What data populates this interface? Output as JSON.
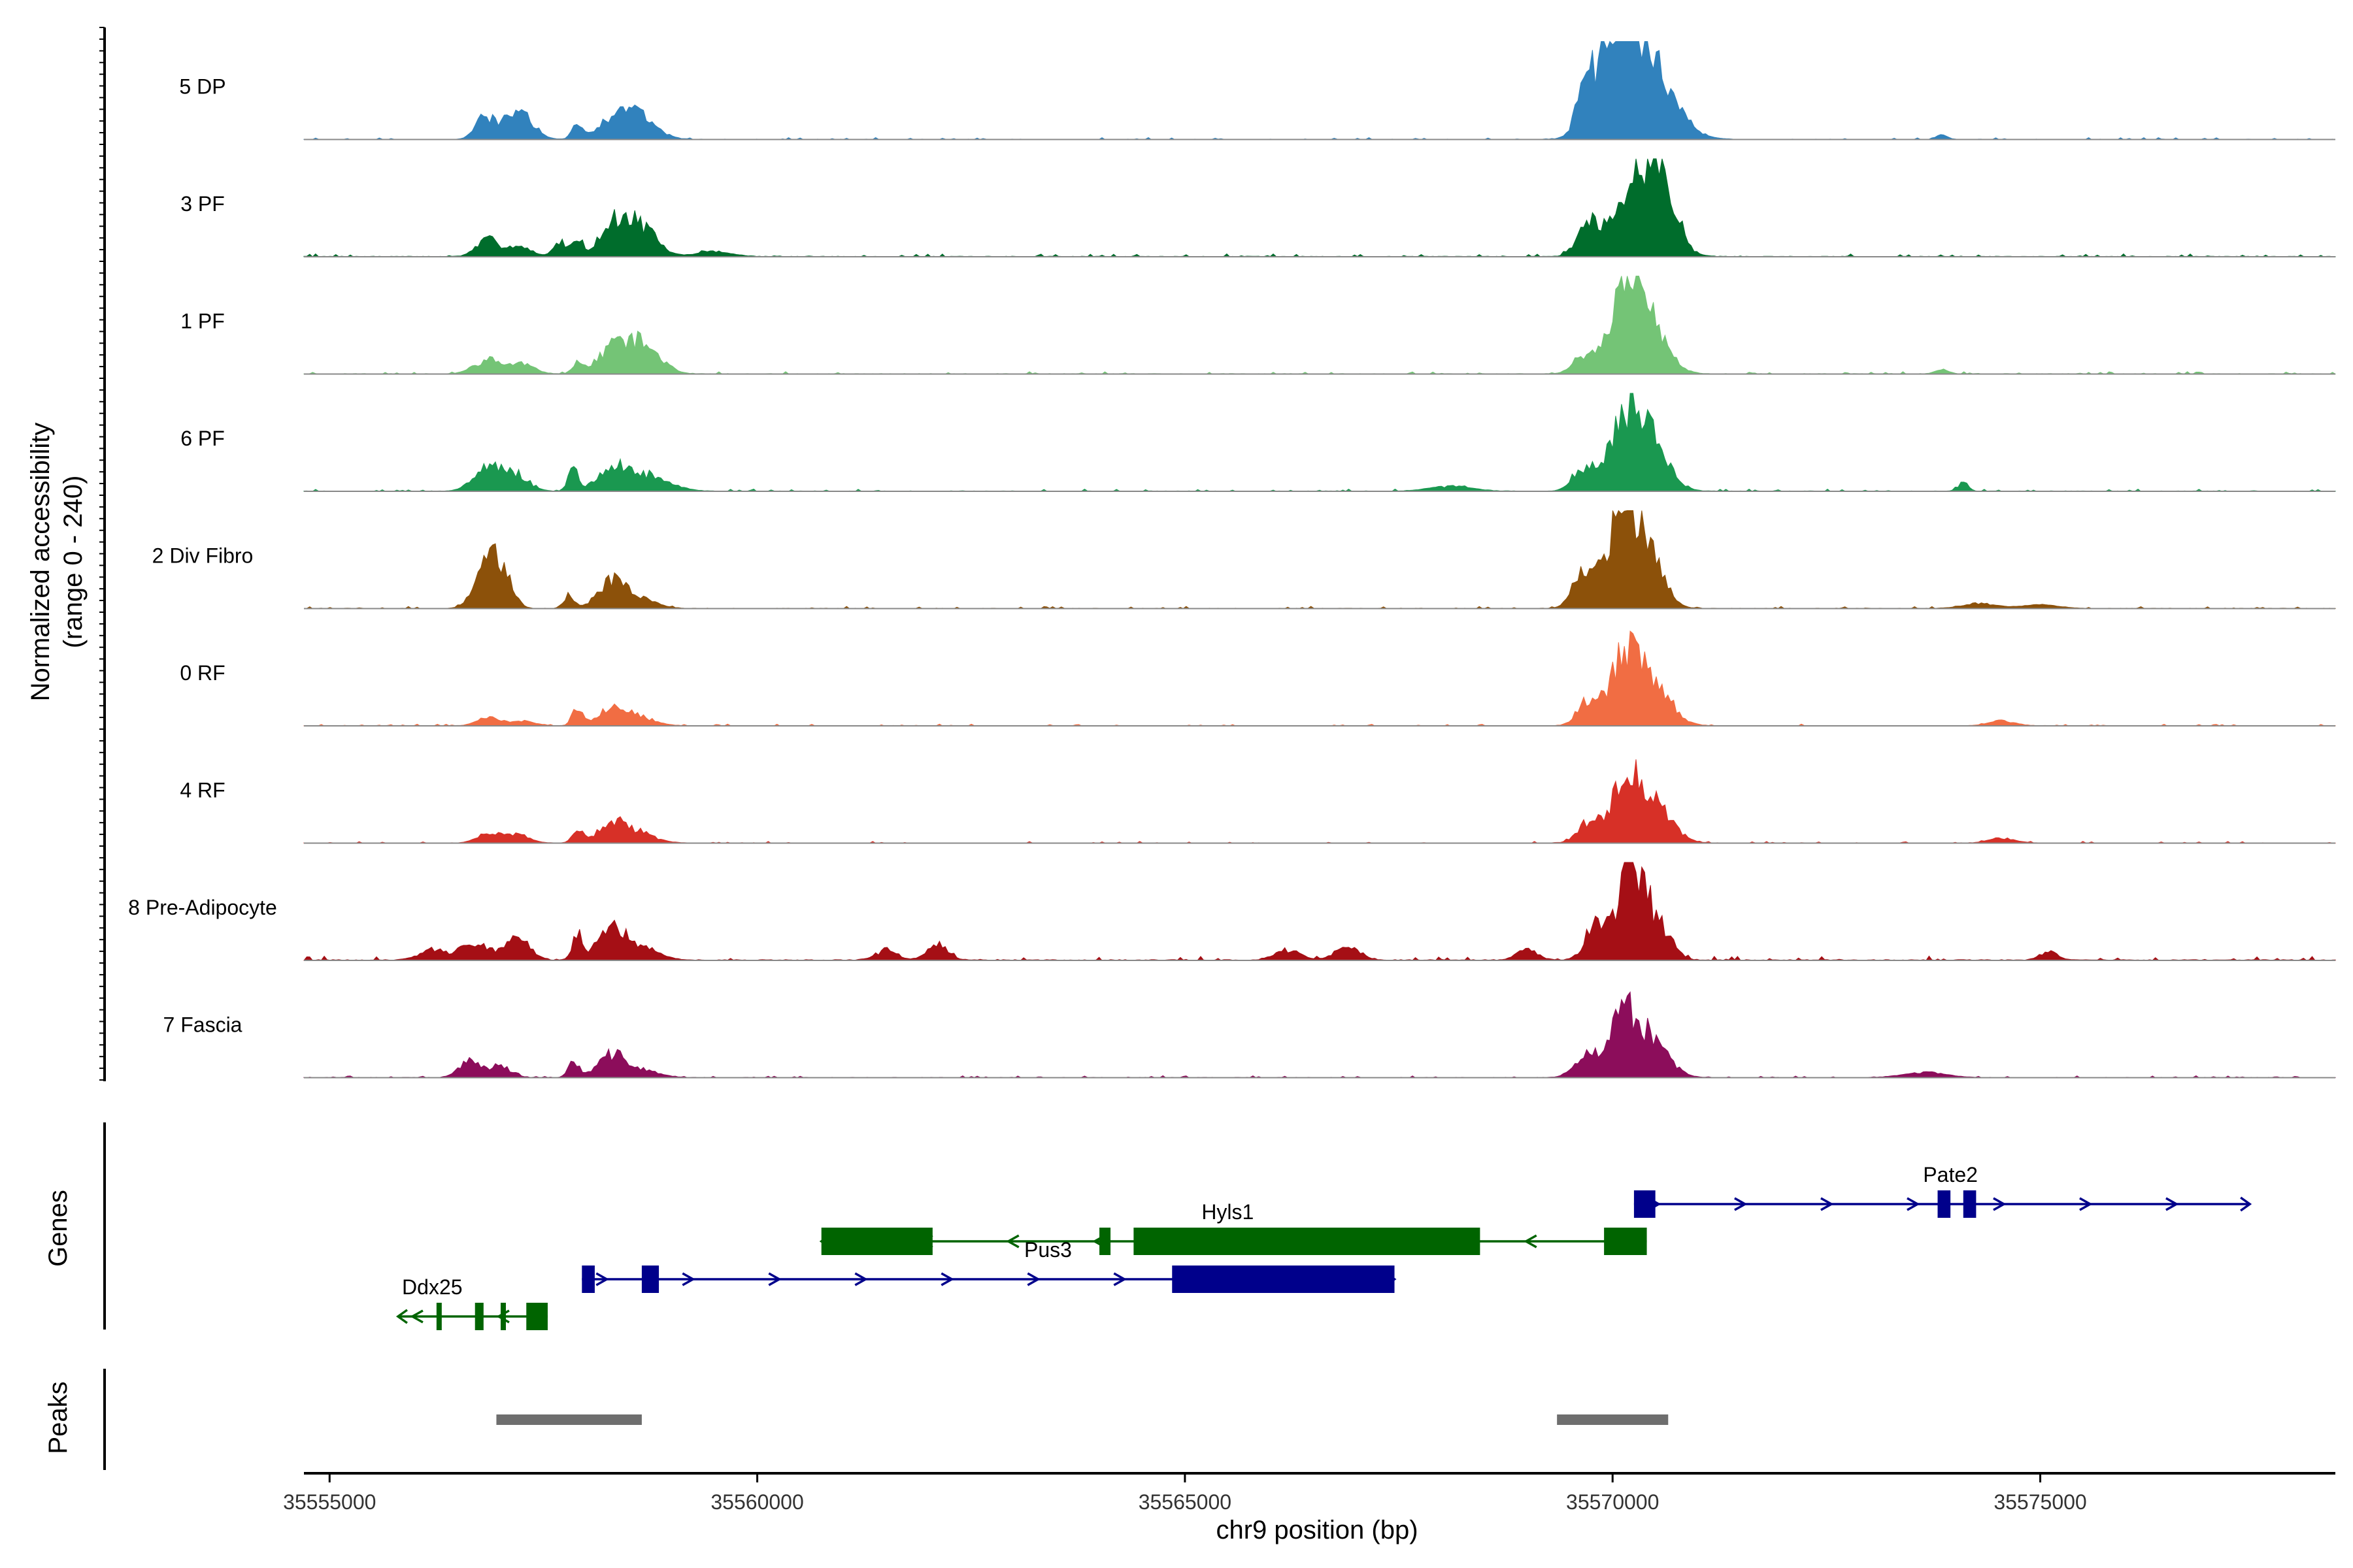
{
  "chart_data": {
    "type": "area",
    "title": "",
    "xlabel": "chr9 position (bp)",
    "ylabel": "Normalized accessibility",
    "ylabel_sub": "(range 0 - 240)",
    "y_range": [
      0,
      240
    ],
    "xlim": [
      35554700,
      35578450
    ],
    "x_ticks": [
      35555000,
      35560000,
      35565000,
      35570000,
      35575000
    ],
    "x_tick_labels": [
      "35555000",
      "35560000",
      "35565000",
      "35570000",
      "35575000"
    ],
    "tracks": [
      {
        "name": "5 DP",
        "color": "#3182bd",
        "peaks": [
          [
            35556800,
            100,
            0.25
          ],
          [
            35557200,
            160,
            0.3
          ],
          [
            35557900,
            60,
            0.15
          ],
          [
            35558300,
            160,
            0.17
          ],
          [
            35558600,
            200,
            0.26
          ],
          [
            35569700,
            120,
            0.45
          ],
          [
            35570050,
            180,
            0.65
          ],
          [
            35570350,
            300,
            0.98
          ],
          [
            35573850,
            60,
            0.05
          ]
        ],
        "noise": 0.013,
        "seed": 3
      },
      {
        "name": "3 PF",
        "color": "#006d2c",
        "peaks": [
          [
            35556850,
            130,
            0.16
          ],
          [
            35557200,
            150,
            0.1
          ],
          [
            35557700,
            80,
            0.14
          ],
          [
            35557900,
            60,
            0.17
          ],
          [
            35558300,
            160,
            0.25
          ],
          [
            35558600,
            200,
            0.32
          ],
          [
            35559500,
            200,
            0.05
          ],
          [
            35569700,
            120,
            0.3
          ],
          [
            35570300,
            260,
            0.88
          ],
          [
            35570600,
            150,
            0.45
          ]
        ],
        "noise": 0.02,
        "seed": 7
      },
      {
        "name": "1 PF",
        "color": "#74c476",
        "peaks": [
          [
            35556850,
            160,
            0.14
          ],
          [
            35557250,
            140,
            0.1
          ],
          [
            35557900,
            60,
            0.13
          ],
          [
            35558300,
            160,
            0.25
          ],
          [
            35558650,
            200,
            0.3
          ],
          [
            35569650,
            120,
            0.18
          ],
          [
            35570150,
            180,
            0.82
          ],
          [
            35570400,
            220,
            0.45
          ],
          [
            35573850,
            80,
            0.04
          ]
        ],
        "noise": 0.016,
        "seed": 11
      },
      {
        "name": "6 PF",
        "color": "#1a9850",
        "peaks": [
          [
            35556850,
            160,
            0.27
          ],
          [
            35557200,
            140,
            0.15
          ],
          [
            35557850,
            60,
            0.23
          ],
          [
            35558300,
            160,
            0.24
          ],
          [
            35558650,
            200,
            0.12
          ],
          [
            35558900,
            200,
            0.07
          ],
          [
            35568100,
            250,
            0.05
          ],
          [
            35569650,
            120,
            0.22
          ],
          [
            35570150,
            200,
            0.65
          ],
          [
            35570450,
            200,
            0.45
          ],
          [
            35574100,
            60,
            0.08
          ]
        ],
        "noise": 0.015,
        "seed": 5
      },
      {
        "name": "2 Div Fibro",
        "color": "#8c510a",
        "peaks": [
          [
            35556800,
            130,
            0.35
          ],
          [
            35557000,
            120,
            0.38
          ],
          [
            35557800,
            60,
            0.13
          ],
          [
            35558300,
            160,
            0.25
          ],
          [
            35558600,
            200,
            0.1
          ],
          [
            35569650,
            120,
            0.33
          ],
          [
            35570100,
            180,
            0.85
          ],
          [
            35570400,
            180,
            0.55
          ],
          [
            35574300,
            200,
            0.05
          ],
          [
            35575000,
            200,
            0.04
          ]
        ],
        "noise": 0.015,
        "seed": 19
      },
      {
        "name": "0 RF",
        "color": "#f16d43",
        "peaks": [
          [
            35556850,
            130,
            0.08
          ],
          [
            35557250,
            140,
            0.05
          ],
          [
            35557900,
            60,
            0.18
          ],
          [
            35558300,
            160,
            0.18
          ],
          [
            35558600,
            200,
            0.08
          ],
          [
            35569700,
            120,
            0.22
          ],
          [
            35570150,
            180,
            0.7
          ],
          [
            35570500,
            200,
            0.35
          ],
          [
            35574550,
            150,
            0.05
          ]
        ],
        "noise": 0.012,
        "seed": 23
      },
      {
        "name": "4 RF",
        "color": "#d73027",
        "peaks": [
          [
            35556850,
            130,
            0.1
          ],
          [
            35557200,
            140,
            0.08
          ],
          [
            35557900,
            60,
            0.15
          ],
          [
            35558300,
            160,
            0.18
          ],
          [
            35558600,
            200,
            0.1
          ],
          [
            35569700,
            120,
            0.18
          ],
          [
            35570150,
            180,
            0.62
          ],
          [
            35570500,
            200,
            0.35
          ],
          [
            35574550,
            150,
            0.05
          ]
        ],
        "noise": 0.012,
        "seed": 29
      },
      {
        "name": "8 Pre-Adipocyte",
        "color": "#a50f15",
        "peaks": [
          [
            35556200,
            150,
            0.1
          ],
          [
            35556700,
            160,
            0.18
          ],
          [
            35557200,
            140,
            0.25
          ],
          [
            35557900,
            60,
            0.24
          ],
          [
            35558300,
            160,
            0.3
          ],
          [
            35558650,
            200,
            0.12
          ],
          [
            35561500,
            120,
            0.1
          ],
          [
            35562100,
            120,
            0.16
          ],
          [
            35566200,
            150,
            0.1
          ],
          [
            35566900,
            150,
            0.12
          ],
          [
            35569000,
            120,
            0.1
          ],
          [
            35569800,
            120,
            0.35
          ],
          [
            35570200,
            140,
            0.98
          ],
          [
            35570500,
            160,
            0.4
          ],
          [
            35575100,
            100,
            0.08
          ]
        ],
        "noise": 0.03,
        "seed": 31
      },
      {
        "name": "7 Fascia",
        "color": "#8c0d5b",
        "peaks": [
          [
            35556650,
            130,
            0.16
          ],
          [
            35557000,
            120,
            0.12
          ],
          [
            35557850,
            60,
            0.17
          ],
          [
            35558300,
            160,
            0.22
          ],
          [
            35558650,
            200,
            0.07
          ],
          [
            35569650,
            120,
            0.2
          ],
          [
            35570100,
            180,
            0.6
          ],
          [
            35570450,
            200,
            0.35
          ],
          [
            35573650,
            250,
            0.05
          ]
        ],
        "noise": 0.014,
        "seed": 37
      }
    ],
    "genes_label": "Genes",
    "genes": [
      {
        "name": "Pate2",
        "color": "#00008b",
        "strand": "+",
        "row": 0,
        "start": 35570250,
        "end": 35577450,
        "exons": [
          [
            35570250,
            35570500
          ],
          [
            35573800,
            35573950
          ],
          [
            35574100,
            35574250
          ]
        ],
        "label_x": 35573950
      },
      {
        "name": "Hyls1",
        "color": "#006400",
        "strand": "-",
        "row": 1,
        "start": 35560750,
        "end": 35570400,
        "exons": [
          [
            35560750,
            35562050
          ],
          [
            35564000,
            35564130
          ],
          [
            35564400,
            35568450
          ],
          [
            35569900,
            35570400
          ]
        ],
        "label_x": 35565500
      },
      {
        "name": "Pus3",
        "color": "#00008b",
        "strand": "+",
        "row": 2,
        "start": 35557950,
        "end": 35567450,
        "exons": [
          [
            35557950,
            35558100
          ],
          [
            35558650,
            35558850
          ],
          [
            35564850,
            35567450
          ]
        ],
        "label_x": 35563400
      },
      {
        "name": "Ddx25",
        "color": "#006400",
        "strand": "-",
        "row": 3,
        "start": 35555800,
        "end": 35557550,
        "exons": [
          [
            35556700,
            35556800
          ],
          [
            35557300,
            35557550
          ],
          [
            35556250,
            35556300
          ],
          [
            35557000,
            35557050
          ]
        ],
        "label_x": 35556200
      }
    ],
    "peaks_label": "Peaks",
    "peak_regions": [
      [
        35556950,
        35558650
      ],
      [
        35569350,
        35570650
      ]
    ]
  }
}
